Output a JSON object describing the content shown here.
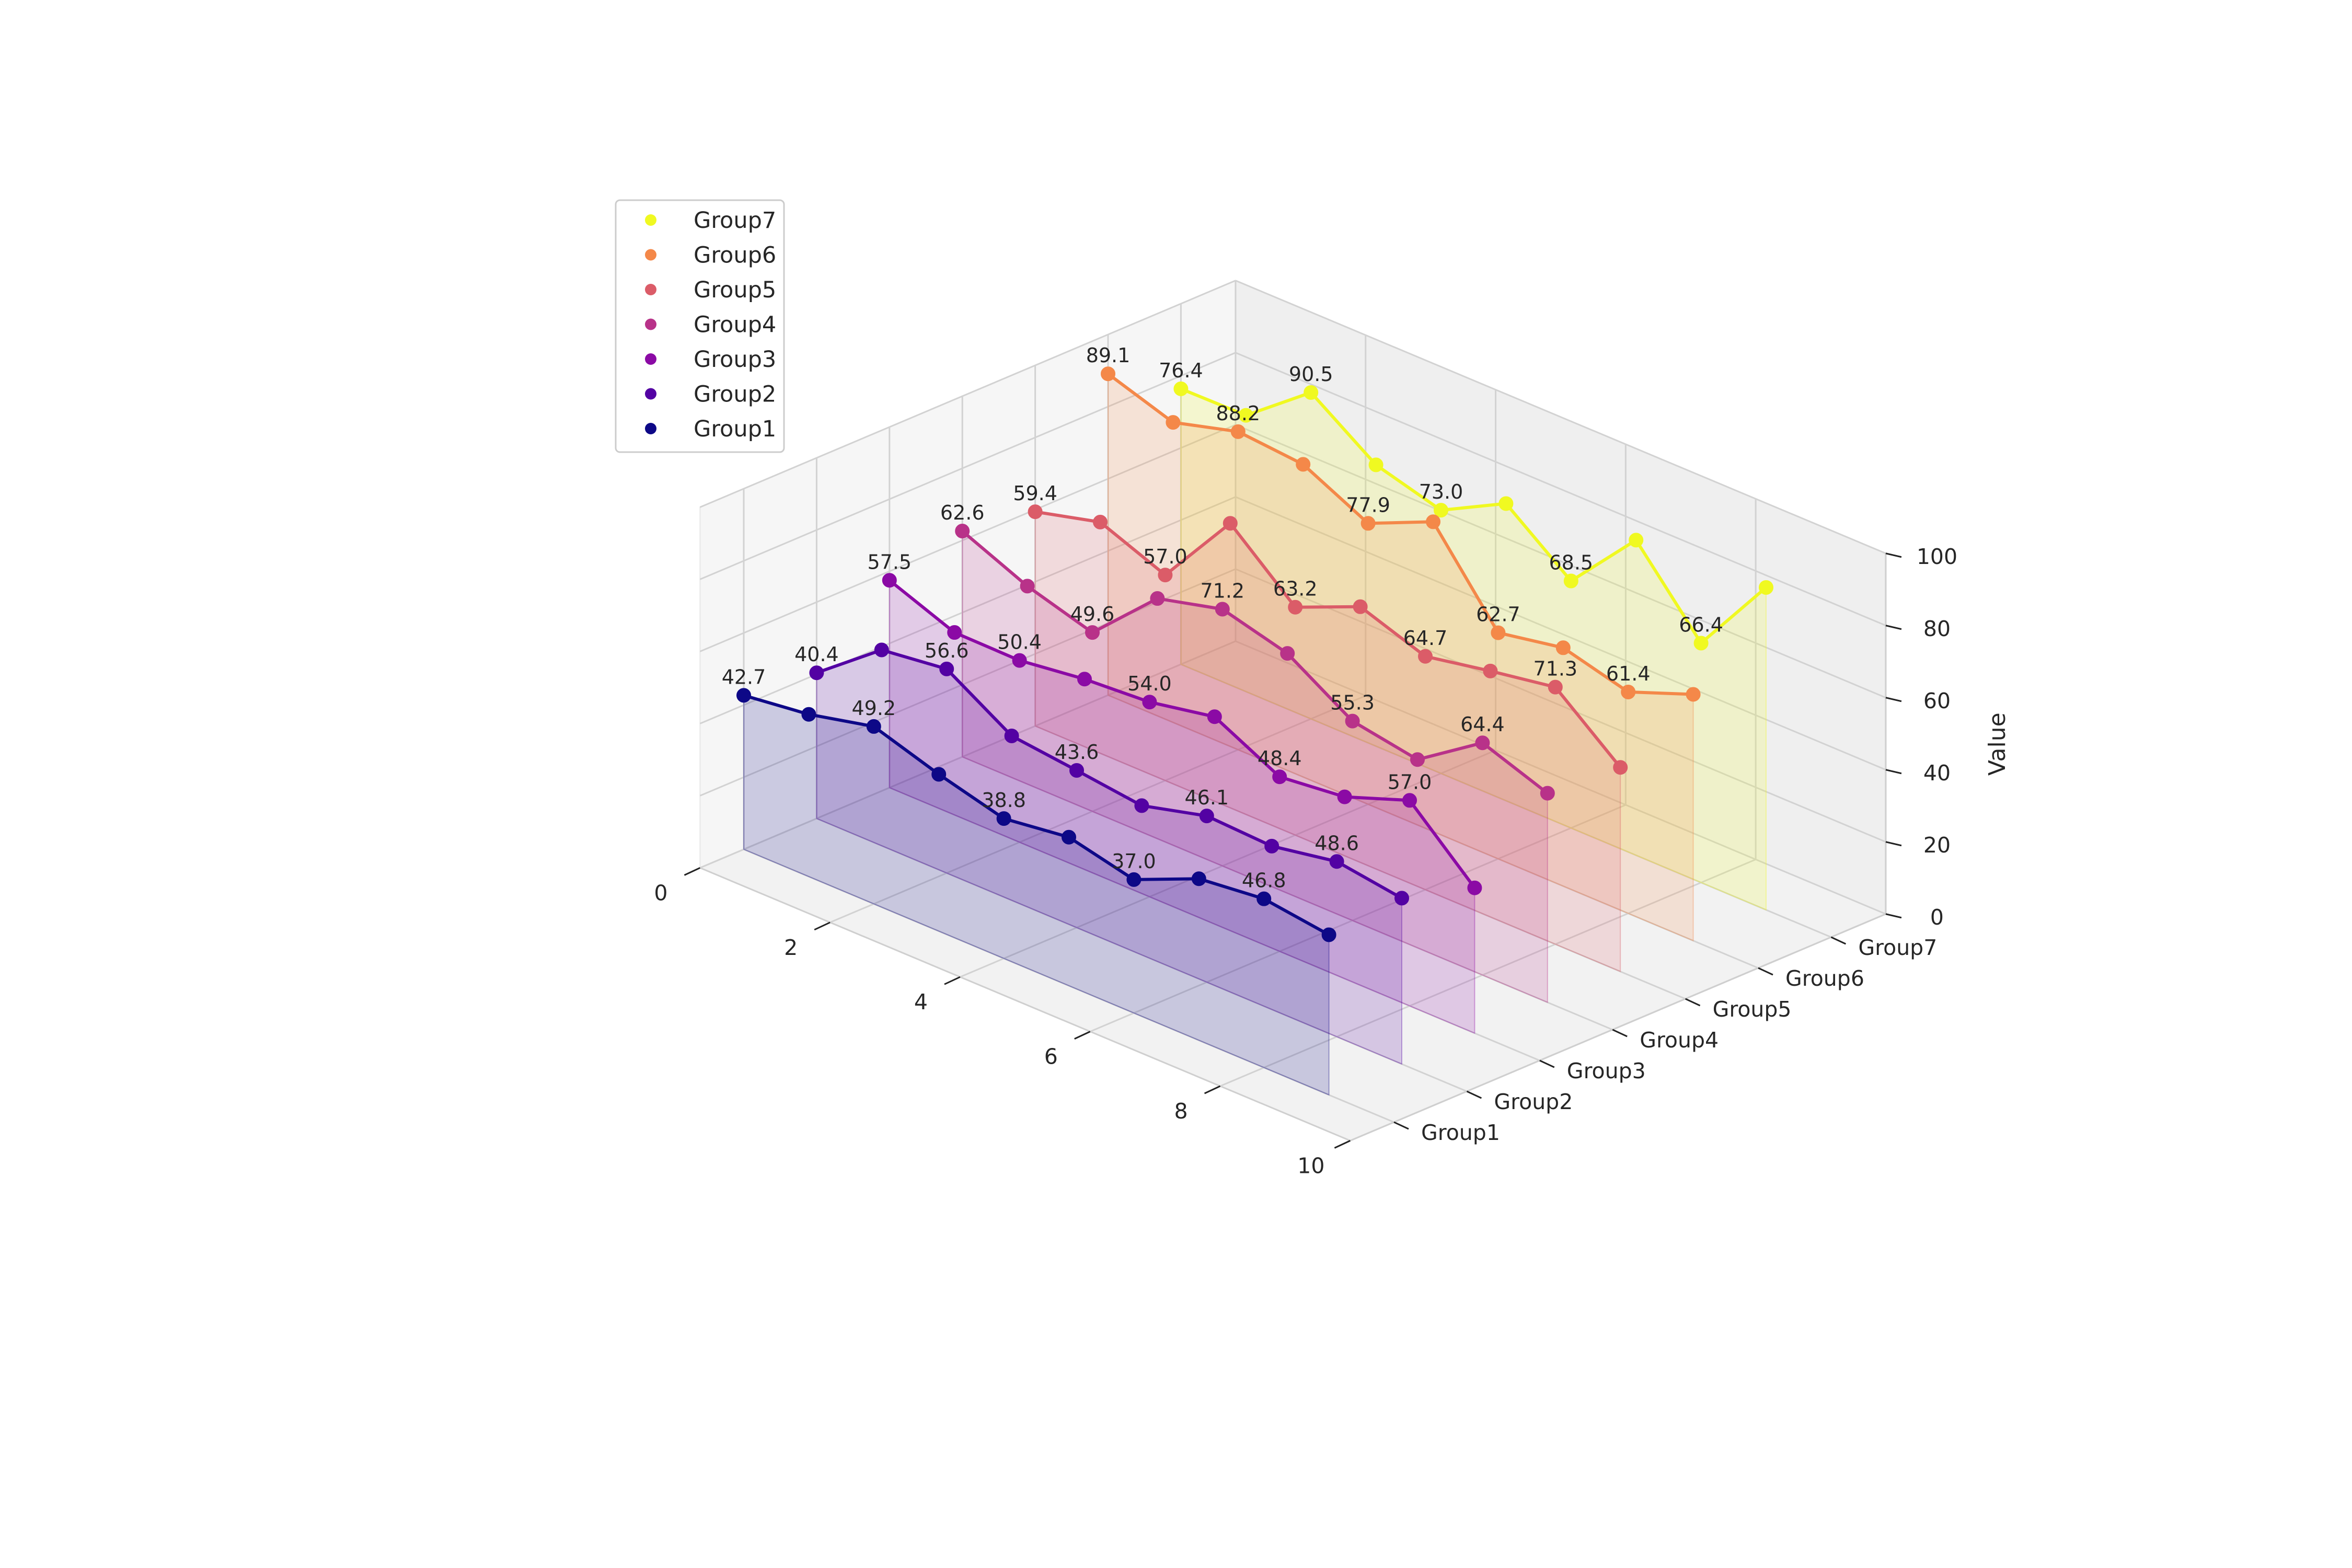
{
  "chart_data": {
    "type": "line",
    "subtype": "3d-line-with-filled-area",
    "title": "",
    "xlabel": "",
    "ylabel": "",
    "zlabel": "Value",
    "x": [
      0,
      1,
      2,
      3,
      4,
      5,
      6,
      7,
      8,
      9
    ],
    "xlim": [
      0,
      10
    ],
    "xticks": [
      "0",
      "2",
      "4",
      "6",
      "8",
      "10"
    ],
    "zlim": [
      0,
      100
    ],
    "zticks": [
      "0",
      "20",
      "40",
      "60",
      "80",
      "100"
    ],
    "categories": [
      "Group1",
      "Group2",
      "Group3",
      "Group4",
      "Group5",
      "Group6",
      "Group7"
    ],
    "grid": true,
    "legend_position": "top-left",
    "legend_order": [
      "Group7",
      "Group6",
      "Group5",
      "Group4",
      "Group3",
      "Group2",
      "Group1"
    ],
    "series": [
      {
        "name": "Group1",
        "color": "#0d0887",
        "values": [
          42.7,
          45.0,
          49.2,
          43.5,
          38.8,
          41.2,
          37.0,
          44.8,
          46.8,
          44.4
        ],
        "labels": [
          "42.7",
          "",
          "49.2",
          "",
          "38.8",
          "",
          "37.0",
          "",
          "46.8",
          ""
        ]
      },
      {
        "name": "Group2",
        "color": "#5302a3",
        "values": [
          40.4,
          54.3,
          56.6,
          45.6,
          43.6,
          41.4,
          46.1,
          45.3,
          48.6,
          46.0
        ],
        "labels": [
          "40.4",
          "",
          "56.6",
          "",
          "43.6",
          "",
          "46.1",
          "",
          "48.6",
          ""
        ]
      },
      {
        "name": "Group3",
        "color": "#8b0aa5",
        "values": [
          57.5,
          50.6,
          50.4,
          52.8,
          54.0,
          57.5,
          48.4,
          50.4,
          57.0,
          40.3
        ],
        "labels": [
          "57.5",
          "",
          "50.4",
          "",
          "54.0",
          "",
          "48.4",
          "",
          "57.0",
          ""
        ]
      },
      {
        "name": "Group4",
        "color": "#b83289",
        "values": [
          62.6,
          54.9,
          49.6,
          66.6,
          71.2,
          66.5,
          55.3,
          52.2,
          64.4,
          58.0
        ],
        "labels": [
          "62.6",
          "",
          "49.6",
          "",
          "71.2",
          "",
          "55.3",
          "",
          "64.4",
          ""
        ]
      },
      {
        "name": "Group5",
        "color": "#db5c68",
        "values": [
          59.4,
          64.1,
          57.0,
          78.9,
          63.2,
          70.9,
          64.7,
          68.2,
          71.3,
          56.6
        ],
        "labels": [
          "59.4",
          "",
          "57.0",
          "",
          "63.2",
          "",
          "64.7",
          "",
          "71.3",
          ""
        ]
      },
      {
        "name": "Group6",
        "color": "#f48849",
        "values": [
          89.1,
          83.2,
          88.2,
          86.7,
          77.9,
          85.9,
          62.7,
          66.1,
          61.4,
          68.3
        ],
        "labels": [
          "89.1",
          "",
          "88.2",
          "",
          "77.9",
          "",
          "62.7",
          "",
          "61.4",
          ""
        ]
      },
      {
        "name": "Group7",
        "color": "#f0f921",
        "values": [
          76.4,
          76.6,
          90.5,
          78.0,
          73.0,
          82.4,
          68.5,
          87.4,
          66.4,
          89.4
        ],
        "labels": [
          "76.4",
          "",
          "90.5",
          "",
          "73.0",
          "",
          "68.5",
          "",
          "66.4",
          ""
        ]
      }
    ]
  }
}
